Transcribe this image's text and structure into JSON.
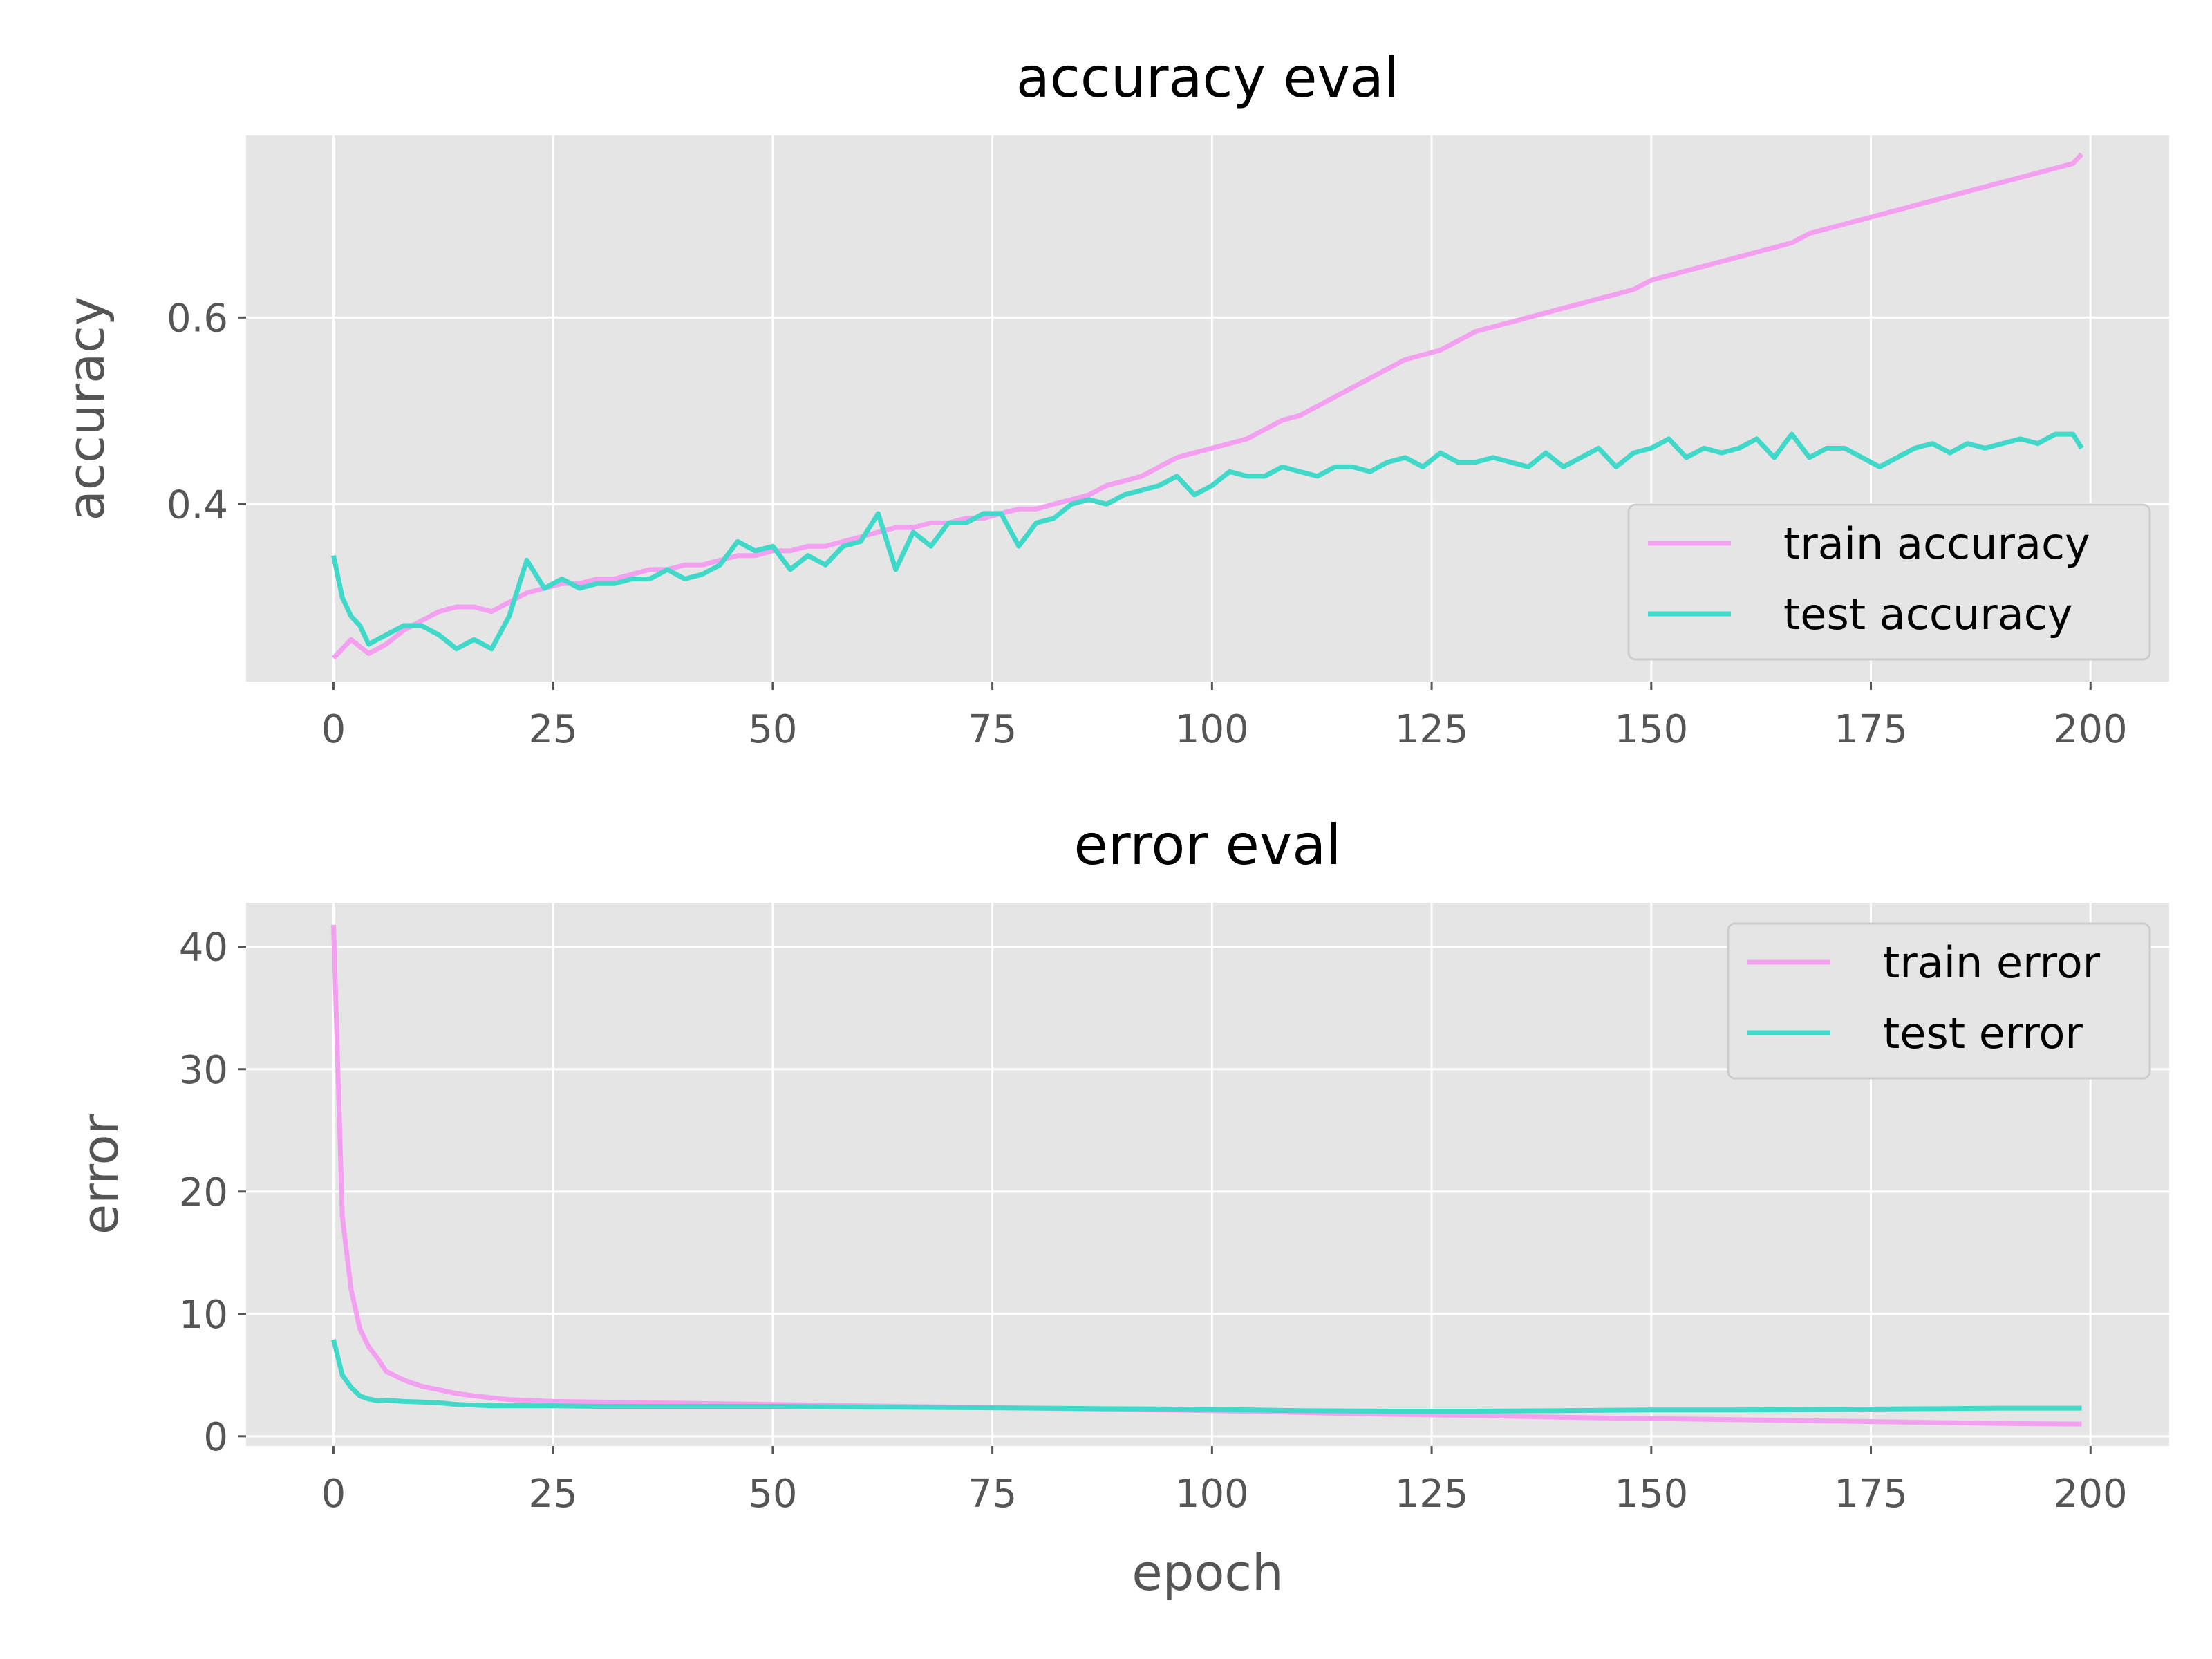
{
  "colors": {
    "train": "#f4a0f0",
    "test": "#40d8c8",
    "panel_bg": "#e5e5e5",
    "grid": "#ffffff",
    "tick_text": "#555555"
  },
  "chart_data": [
    {
      "type": "line",
      "title": "accuracy eval",
      "xlabel": "",
      "ylabel": "accuracy",
      "xlim": [
        -9.95,
        208.95
      ],
      "ylim": [
        0.21,
        0.795
      ],
      "xticks": [
        0,
        25,
        50,
        75,
        100,
        125,
        150,
        175,
        200
      ],
      "yticks": [
        0.4,
        0.6
      ],
      "ytick_labels": [
        "0.4",
        "0.6"
      ],
      "grid": true,
      "legend": "lower-right",
      "series": [
        {
          "name": "train accuracy",
          "x": [
            0,
            2,
            4,
            6,
            8,
            10,
            12,
            14,
            16,
            18,
            20,
            22,
            24,
            26,
            28,
            30,
            32,
            34,
            36,
            38,
            40,
            42,
            44,
            46,
            48,
            50,
            52,
            54,
            56,
            58,
            60,
            62,
            64,
            66,
            68,
            70,
            72,
            74,
            76,
            78,
            80,
            82,
            84,
            86,
            88,
            90,
            92,
            94,
            96,
            98,
            100,
            102,
            104,
            106,
            108,
            110,
            112,
            114,
            116,
            118,
            120,
            122,
            124,
            126,
            128,
            130,
            132,
            134,
            136,
            138,
            140,
            142,
            144,
            146,
            148,
            150,
            152,
            154,
            156,
            158,
            160,
            162,
            164,
            166,
            168,
            170,
            172,
            174,
            176,
            178,
            180,
            182,
            184,
            186,
            188,
            190,
            192,
            194,
            196,
            198,
            199
          ],
          "y": [
            0.235,
            0.255,
            0.24,
            0.25,
            0.265,
            0.275,
            0.285,
            0.29,
            0.29,
            0.285,
            0.295,
            0.305,
            0.31,
            0.315,
            0.315,
            0.32,
            0.32,
            0.325,
            0.33,
            0.33,
            0.335,
            0.335,
            0.34,
            0.345,
            0.345,
            0.35,
            0.35,
            0.355,
            0.355,
            0.36,
            0.365,
            0.37,
            0.375,
            0.375,
            0.38,
            0.38,
            0.385,
            0.385,
            0.39,
            0.395,
            0.395,
            0.4,
            0.405,
            0.41,
            0.42,
            0.425,
            0.43,
            0.44,
            0.45,
            0.455,
            0.46,
            0.465,
            0.47,
            0.48,
            0.49,
            0.495,
            0.505,
            0.515,
            0.525,
            0.535,
            0.545,
            0.555,
            0.56,
            0.565,
            0.575,
            0.585,
            0.59,
            0.595,
            0.6,
            0.605,
            0.61,
            0.615,
            0.62,
            0.625,
            0.63,
            0.64,
            0.645,
            0.65,
            0.655,
            0.66,
            0.665,
            0.67,
            0.675,
            0.68,
            0.69,
            0.695,
            0.7,
            0.705,
            0.71,
            0.715,
            0.72,
            0.725,
            0.73,
            0.735,
            0.74,
            0.745,
            0.75,
            0.755,
            0.76,
            0.765,
            0.775
          ]
        },
        {
          "name": "test accuracy",
          "x": [
            0,
            1,
            2,
            3,
            4,
            5,
            6,
            8,
            10,
            12,
            14,
            16,
            18,
            20,
            22,
            24,
            26,
            28,
            30,
            32,
            34,
            36,
            38,
            40,
            42,
            44,
            46,
            48,
            50,
            52,
            54,
            56,
            58,
            60,
            62,
            64,
            66,
            68,
            70,
            72,
            74,
            76,
            78,
            80,
            82,
            84,
            86,
            88,
            90,
            92,
            94,
            96,
            98,
            100,
            102,
            104,
            106,
            108,
            110,
            112,
            114,
            116,
            118,
            120,
            122,
            124,
            126,
            128,
            130,
            132,
            134,
            136,
            138,
            140,
            142,
            144,
            146,
            148,
            150,
            152,
            154,
            156,
            158,
            160,
            162,
            164,
            166,
            168,
            170,
            172,
            174,
            176,
            178,
            180,
            182,
            184,
            186,
            188,
            190,
            192,
            194,
            196,
            198,
            199
          ],
          "y": [
            0.345,
            0.3,
            0.28,
            0.27,
            0.25,
            0.255,
            0.26,
            0.27,
            0.27,
            0.26,
            0.245,
            0.255,
            0.245,
            0.28,
            0.34,
            0.31,
            0.32,
            0.31,
            0.315,
            0.315,
            0.32,
            0.32,
            0.33,
            0.32,
            0.325,
            0.335,
            0.36,
            0.35,
            0.355,
            0.33,
            0.345,
            0.335,
            0.355,
            0.36,
            0.39,
            0.33,
            0.37,
            0.355,
            0.38,
            0.38,
            0.39,
            0.39,
            0.355,
            0.38,
            0.385,
            0.4,
            0.405,
            0.4,
            0.41,
            0.415,
            0.42,
            0.43,
            0.41,
            0.42,
            0.435,
            0.43,
            0.43,
            0.44,
            0.435,
            0.43,
            0.44,
            0.44,
            0.435,
            0.445,
            0.45,
            0.44,
            0.455,
            0.445,
            0.445,
            0.45,
            0.445,
            0.44,
            0.455,
            0.44,
            0.45,
            0.46,
            0.44,
            0.455,
            0.46,
            0.47,
            0.45,
            0.46,
            0.455,
            0.46,
            0.47,
            0.45,
            0.475,
            0.45,
            0.46,
            0.46,
            0.45,
            0.44,
            0.45,
            0.46,
            0.465,
            0.455,
            0.465,
            0.46,
            0.465,
            0.47,
            0.465,
            0.475,
            0.475,
            0.46
          ]
        }
      ]
    },
    {
      "type": "line",
      "title": "error eval",
      "xlabel": "epoch",
      "ylabel": "error",
      "xlim": [
        -9.95,
        208.95
      ],
      "ylim": [
        -0.8,
        43.6
      ],
      "xticks": [
        0,
        25,
        50,
        75,
        100,
        125,
        150,
        175,
        200
      ],
      "yticks": [
        0,
        10,
        20,
        30,
        40
      ],
      "ytick_labels": [
        "0",
        "10",
        "20",
        "30",
        "40"
      ],
      "grid": true,
      "legend": "upper-right",
      "series": [
        {
          "name": "train error",
          "x": [
            0,
            1,
            2,
            3,
            4,
            5,
            6,
            8,
            10,
            12,
            14,
            16,
            18,
            20,
            25,
            30,
            40,
            50,
            60,
            70,
            80,
            90,
            100,
            110,
            120,
            130,
            140,
            150,
            160,
            170,
            180,
            190,
            199
          ],
          "y": [
            41.8,
            18.0,
            12.0,
            8.8,
            7.3,
            6.4,
            5.3,
            4.6,
            4.1,
            3.8,
            3.5,
            3.3,
            3.15,
            3.0,
            2.85,
            2.8,
            2.7,
            2.6,
            2.5,
            2.4,
            2.3,
            2.2,
            2.1,
            1.95,
            1.8,
            1.7,
            1.55,
            1.45,
            1.35,
            1.25,
            1.15,
            1.05,
            1.0
          ]
        },
        {
          "name": "test error",
          "x": [
            0,
            1,
            2,
            3,
            4,
            5,
            6,
            8,
            10,
            12,
            14,
            16,
            18,
            20,
            25,
            30,
            40,
            50,
            60,
            70,
            80,
            90,
            100,
            110,
            120,
            130,
            140,
            150,
            160,
            170,
            180,
            190,
            199
          ],
          "y": [
            7.9,
            5.0,
            4.0,
            3.3,
            3.05,
            2.9,
            2.95,
            2.85,
            2.8,
            2.75,
            2.6,
            2.55,
            2.5,
            2.5,
            2.5,
            2.45,
            2.45,
            2.45,
            2.4,
            2.35,
            2.3,
            2.25,
            2.2,
            2.1,
            2.05,
            2.05,
            2.1,
            2.15,
            2.15,
            2.2,
            2.25,
            2.3,
            2.3
          ]
        }
      ]
    }
  ]
}
